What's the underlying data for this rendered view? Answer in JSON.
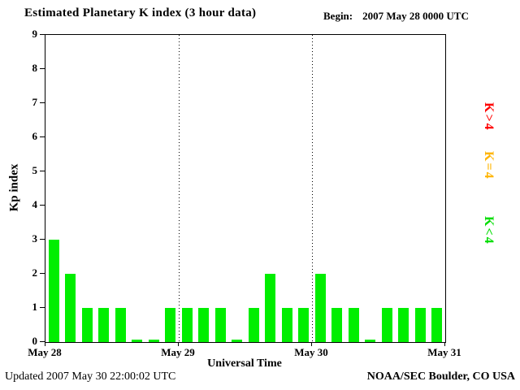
{
  "chart_data": {
    "type": "bar",
    "title": "Estimated Planetary K index (3 hour data)",
    "begin_label": "Begin:",
    "begin_value": "2007 May 28 0000 UTC",
    "xlabel": "Universal Time",
    "ylabel": "Kp index",
    "ylim": [
      0,
      9
    ],
    "yticks": [
      0,
      1,
      2,
      3,
      4,
      5,
      6,
      7,
      8,
      9
    ],
    "xticks": [
      "May 28",
      "May 29",
      "May 30",
      "May 31"
    ],
    "bars_per_day": 8,
    "values": [
      3,
      2,
      1,
      1,
      1,
      0,
      0,
      1,
      1,
      1,
      1,
      0,
      1,
      2,
      1,
      1,
      2,
      1,
      1,
      0,
      1,
      1,
      1,
      1
    ],
    "bar_color_rules": {
      "below4": "#00ee00",
      "equal4": "#ffb400",
      "above4": "#ff0000"
    },
    "legend": [
      {
        "label": "K>4",
        "color": "#ff0000"
      },
      {
        "label": "K=4",
        "color": "#ffb400"
      },
      {
        "label": "K<4",
        "color": "#00dd00"
      }
    ],
    "grid": {
      "vertical_dotted_at_ticks": [
        1,
        2
      ]
    },
    "footer_left": "Updated 2007 May 30 22:00:02 UTC",
    "footer_right": "NOAA/SEC Boulder, CO USA"
  }
}
